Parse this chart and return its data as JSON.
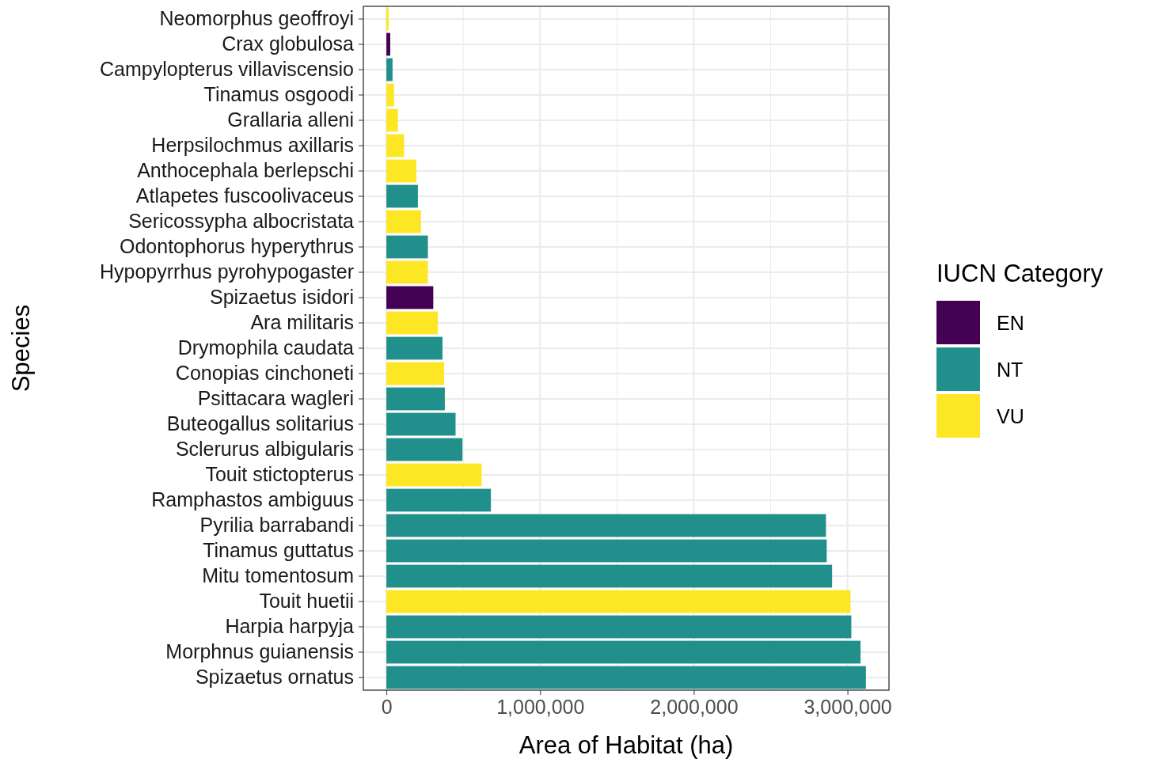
{
  "chart_data": {
    "type": "bar",
    "orientation": "horizontal",
    "stacked": true,
    "xlabel": "Area of Habitat (ha)",
    "ylabel": "Species",
    "legend_title": "IUCN Category",
    "legend": "right",
    "grid": true,
    "categories": [
      "Neomorphus geoffroyi",
      "Crax globulosa",
      "Campylopterus villaviscensio",
      "Tinamus osgoodi",
      "Grallaria alleni",
      "Herpsilochmus axillaris",
      "Anthocephala berlepschi",
      "Atlapetes fuscoolivaceus",
      "Sericossypha albocristata",
      "Odontophorus hyperythrus",
      "Hypopyrrhus pyrohypogaster",
      "Spizaetus isidori",
      "Ara militaris",
      "Drymophila caudata",
      "Conopias cinchoneti",
      "Psittacara wagleri",
      "Buteogallus solitarius",
      "Sclerurus albigularis",
      "Touit stictopterus",
      "Ramphastos ambiguus",
      "Pyrilia barrabandi",
      "Tinamus guttatus",
      "Mitu tomentosum",
      "Touit huetii",
      "Harpia harpyja",
      "Morphnus guianensis",
      "Spizaetus ornatus"
    ],
    "series": [
      {
        "name": "EN",
        "color": "#440154",
        "values": [
          null,
          25000,
          null,
          null,
          null,
          null,
          null,
          null,
          null,
          null,
          null,
          305000,
          null,
          null,
          null,
          null,
          null,
          null,
          null,
          null,
          null,
          null,
          null,
          null,
          null,
          null,
          null
        ]
      },
      {
        "name": "NT",
        "color": "#21908c",
        "values": [
          null,
          null,
          40000,
          null,
          null,
          null,
          null,
          205000,
          null,
          270000,
          null,
          null,
          null,
          365000,
          null,
          380000,
          450000,
          495000,
          null,
          680000,
          2860000,
          2865000,
          2900000,
          null,
          3025000,
          3085000,
          3120000
        ]
      },
      {
        "name": "VU",
        "color": "#fde725",
        "values": [
          15000,
          null,
          null,
          50000,
          75000,
          115000,
          195000,
          null,
          225000,
          null,
          270000,
          null,
          335000,
          null,
          375000,
          null,
          null,
          null,
          620000,
          null,
          null,
          null,
          null,
          3020000,
          null,
          null,
          null
        ]
      }
    ],
    "xlim": [
      -150000,
      3270000
    ],
    "xticks": [
      {
        "value": 0,
        "label": "0"
      },
      {
        "value": 500000,
        "label": null
      },
      {
        "value": 1000000,
        "label": "1,000,000"
      },
      {
        "value": 1500000,
        "label": null
      },
      {
        "value": 2000000,
        "label": "2,000,000"
      },
      {
        "value": 2500000,
        "label": null
      },
      {
        "value": 3000000,
        "label": "3,000,000"
      }
    ]
  }
}
